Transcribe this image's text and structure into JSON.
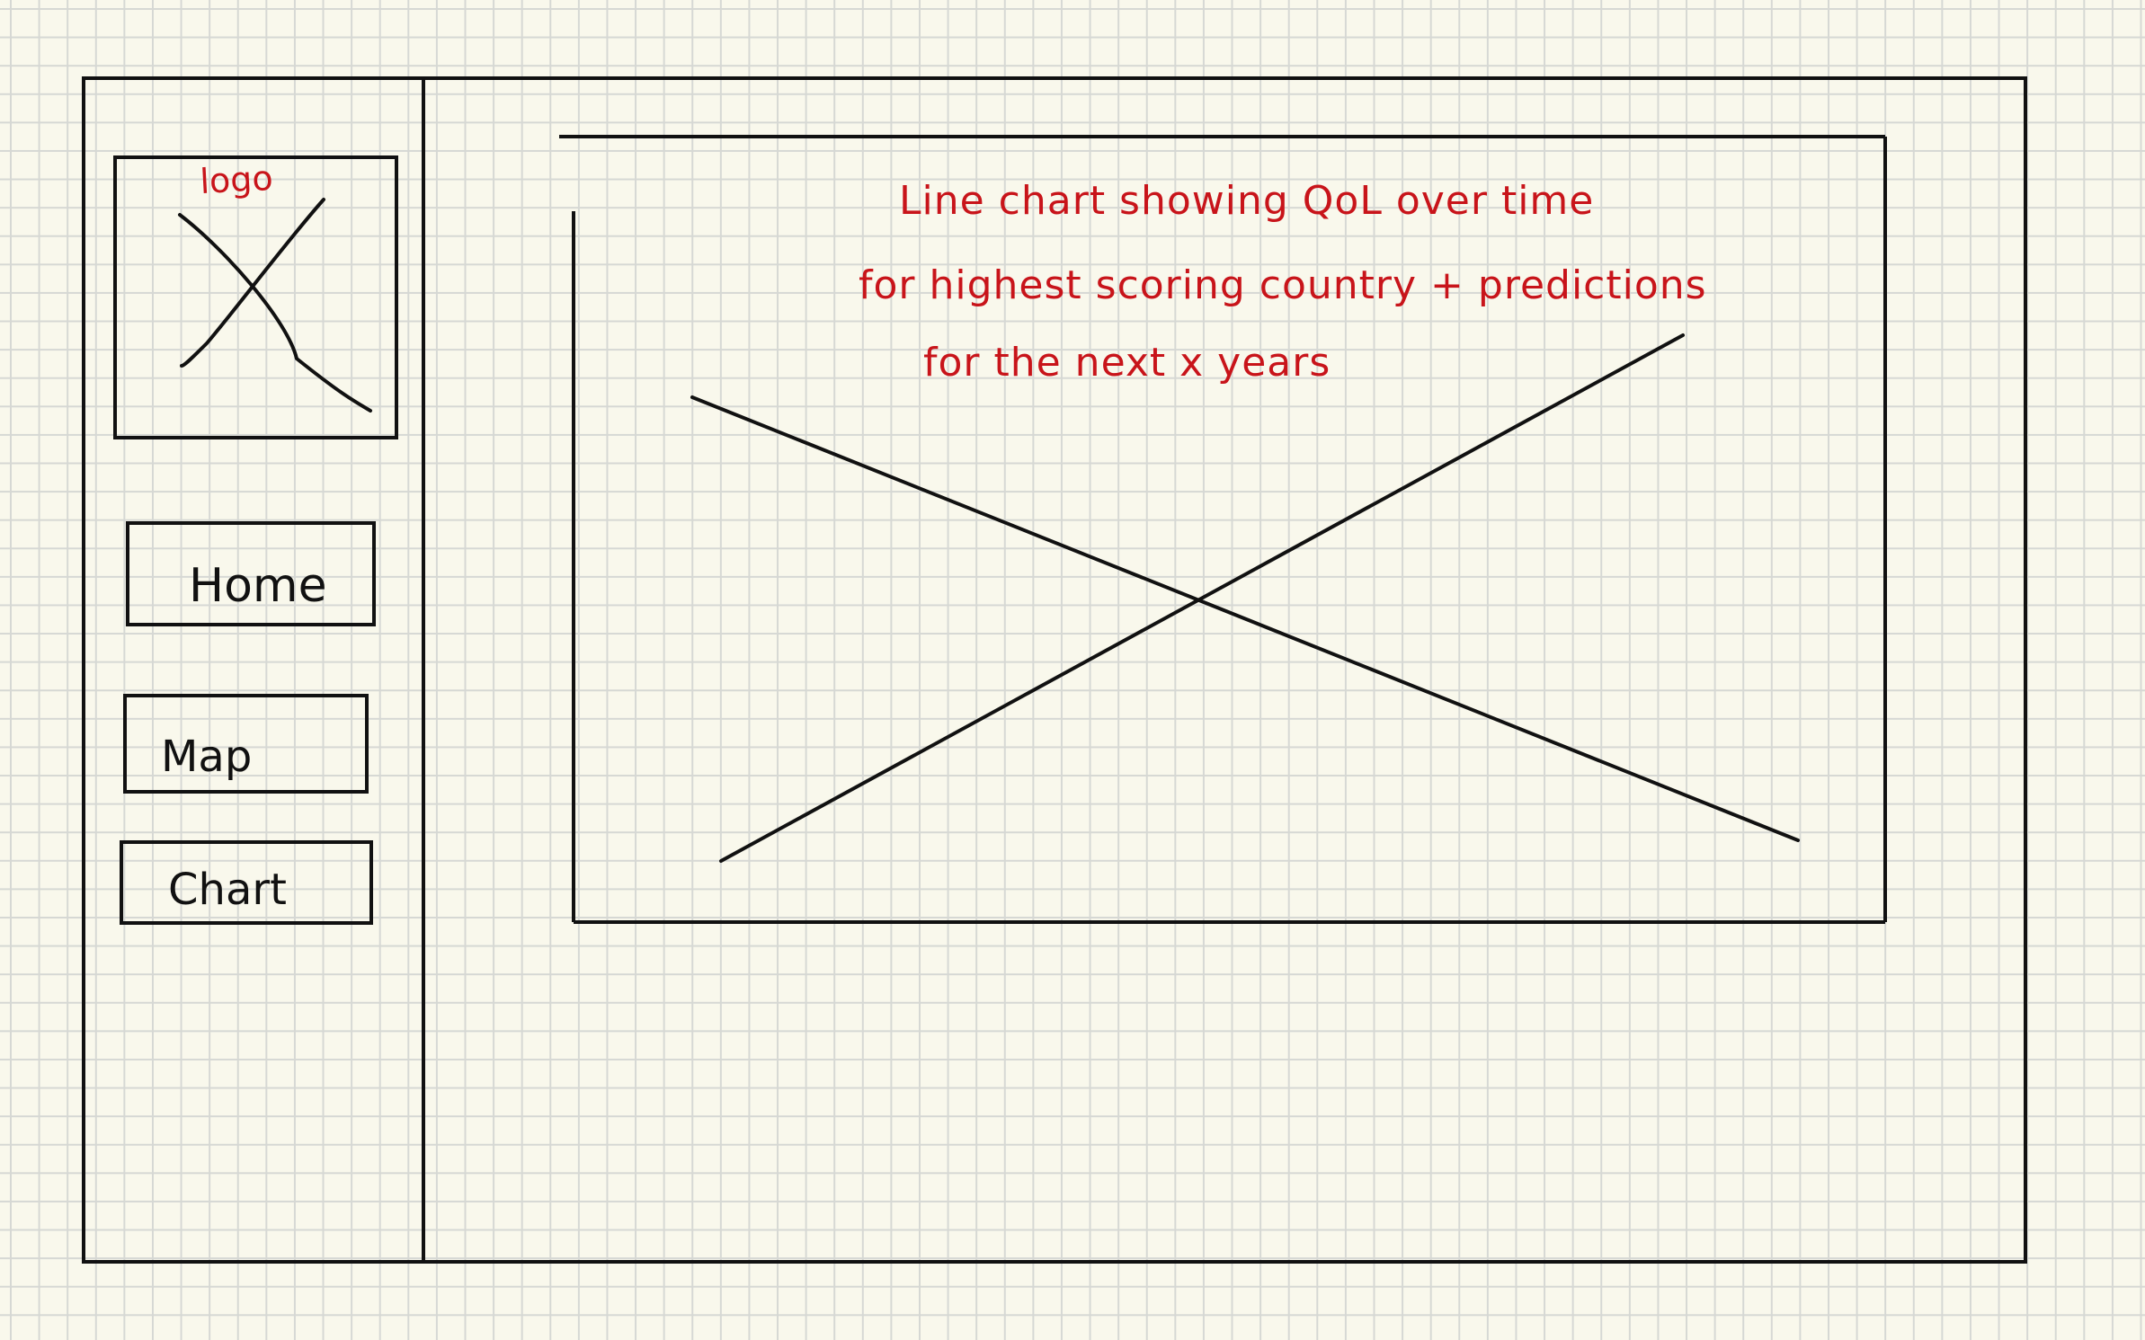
{
  "logo": {
    "label": "logo"
  },
  "sidebar": {
    "items": [
      {
        "label": "Home"
      },
      {
        "label": "Map"
      },
      {
        "label": "Chart"
      }
    ]
  },
  "chart_placeholder": {
    "note_lines": [
      "Line chart showing QoL over time",
      "for highest scoring country + predictions",
      "for the next x years"
    ]
  },
  "colors": {
    "ink": "#111111",
    "annotation": "#c8141a",
    "paper": "#f9f8ec",
    "grid": "#d6d8d4"
  }
}
